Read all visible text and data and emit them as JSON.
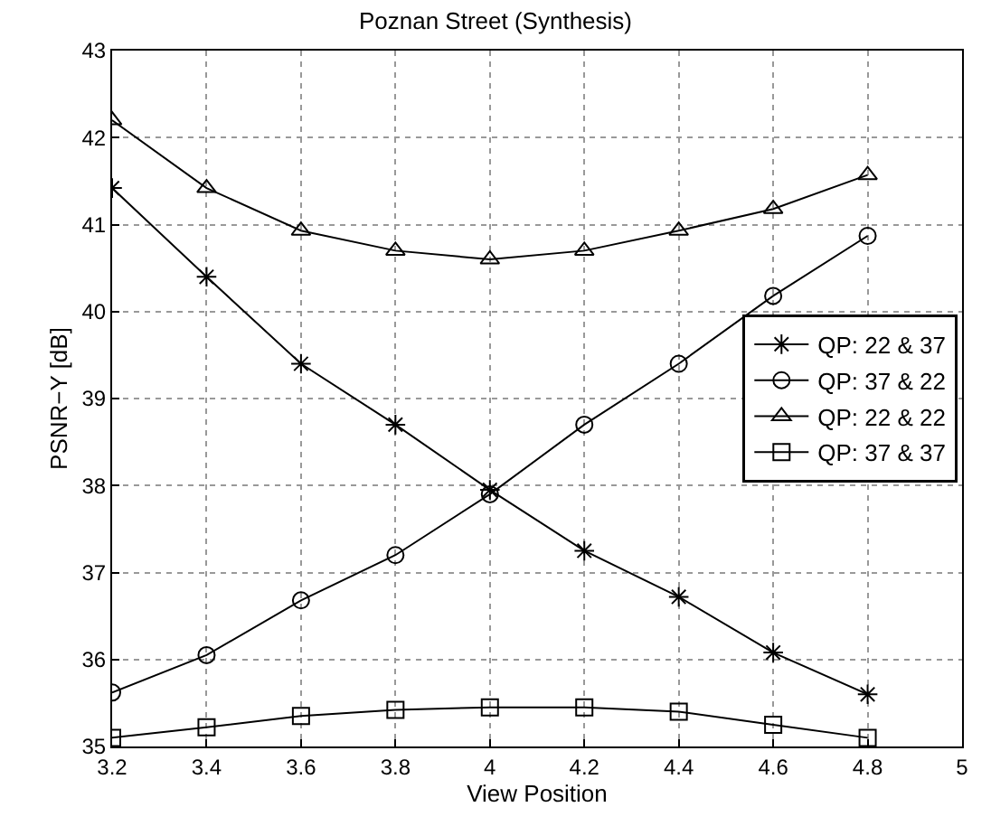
{
  "chart_data": {
    "type": "line",
    "title": "Poznan Street (Synthesis)",
    "xlabel": "View Position",
    "ylabel": "PSNR−Y [dB]",
    "x": [
      3.2,
      3.4,
      3.6,
      3.8,
      4,
      4.2,
      4.4,
      4.6,
      4.8
    ],
    "series": [
      {
        "name": "QP: 22 & 37",
        "color": "#000000",
        "marker": "cross",
        "values": [
          41.42,
          40.4,
          39.4,
          38.7,
          37.95,
          37.25,
          36.72,
          36.08,
          35.6
        ]
      },
      {
        "name": "QP: 37 & 22",
        "color": "#000000",
        "marker": "circle",
        "values": [
          35.62,
          36.05,
          36.68,
          37.2,
          37.9,
          38.7,
          39.4,
          40.18,
          40.87
        ]
      },
      {
        "name": "QP: 22 & 22",
        "color": "#000000",
        "marker": "triangle",
        "values": [
          42.2,
          41.42,
          40.93,
          40.7,
          40.6,
          40.7,
          40.93,
          41.18,
          41.57
        ]
      },
      {
        "name": "QP: 37 & 37",
        "color": "#000000",
        "marker": "square",
        "values": [
          35.1,
          35.22,
          35.35,
          35.42,
          35.45,
          35.45,
          35.4,
          35.25,
          35.1
        ]
      }
    ],
    "xlim": [
      3.2,
      5
    ],
    "xticks": [
      3.2,
      3.4,
      3.6,
      3.8,
      4,
      4.2,
      4.4,
      4.6,
      4.8,
      5
    ],
    "ylim": [
      35,
      43
    ],
    "yticks": [
      35,
      36,
      37,
      38,
      39,
      40,
      41,
      42,
      43
    ],
    "grid": true,
    "legend": "right",
    "line_style": "solid"
  }
}
